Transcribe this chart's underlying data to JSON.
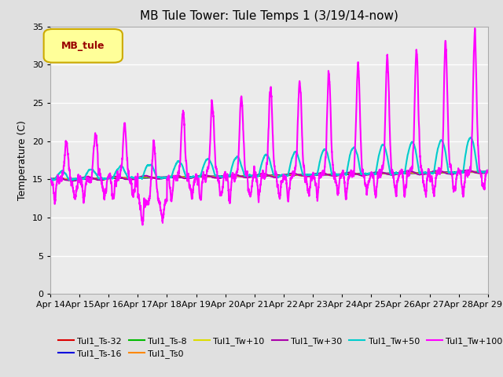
{
  "title": "MB Tule Tower: Tule Temps 1 (3/19/14-now)",
  "ylabel": "Temperature (C)",
  "xlim_days": [
    0,
    15
  ],
  "ylim": [
    0,
    35
  ],
  "yticks": [
    0,
    5,
    10,
    15,
    20,
    25,
    30,
    35
  ],
  "x_tick_labels": [
    "Apr 14",
    "Apr 15",
    "Apr 16",
    "Apr 17",
    "Apr 18",
    "Apr 19",
    "Apr 20",
    "Apr 21",
    "Apr 22",
    "Apr 23",
    "Apr 24",
    "Apr 25",
    "Apr 26",
    "Apr 27",
    "Apr 28",
    "Apr 29"
  ],
  "bg_color": "#e0e0e0",
  "plot_bg_color": "#ebebeb",
  "legend_label": "MB_tule",
  "legend_bg": "#ffff99",
  "legend_edge": "#ccaa00",
  "series": [
    {
      "label": "Tul1_Ts-32",
      "color": "#dd0000",
      "lw": 1.5
    },
    {
      "label": "Tul1_Ts-16",
      "color": "#0000dd",
      "lw": 1.5
    },
    {
      "label": "Tul1_Ts-8",
      "color": "#00bb00",
      "lw": 1.5
    },
    {
      "label": "Tul1_Ts0",
      "color": "#ff8800",
      "lw": 1.5
    },
    {
      "label": "Tul1_Tw+10",
      "color": "#dddd00",
      "lw": 1.5
    },
    {
      "label": "Tul1_Tw+30",
      "color": "#aa00aa",
      "lw": 1.5
    },
    {
      "label": "Tul1_Tw+50",
      "color": "#00cccc",
      "lw": 1.5
    },
    {
      "label": "Tul1_Tw+100",
      "color": "#ff00ff",
      "lw": 1.5
    }
  ],
  "n_days": 15,
  "seed": 7
}
